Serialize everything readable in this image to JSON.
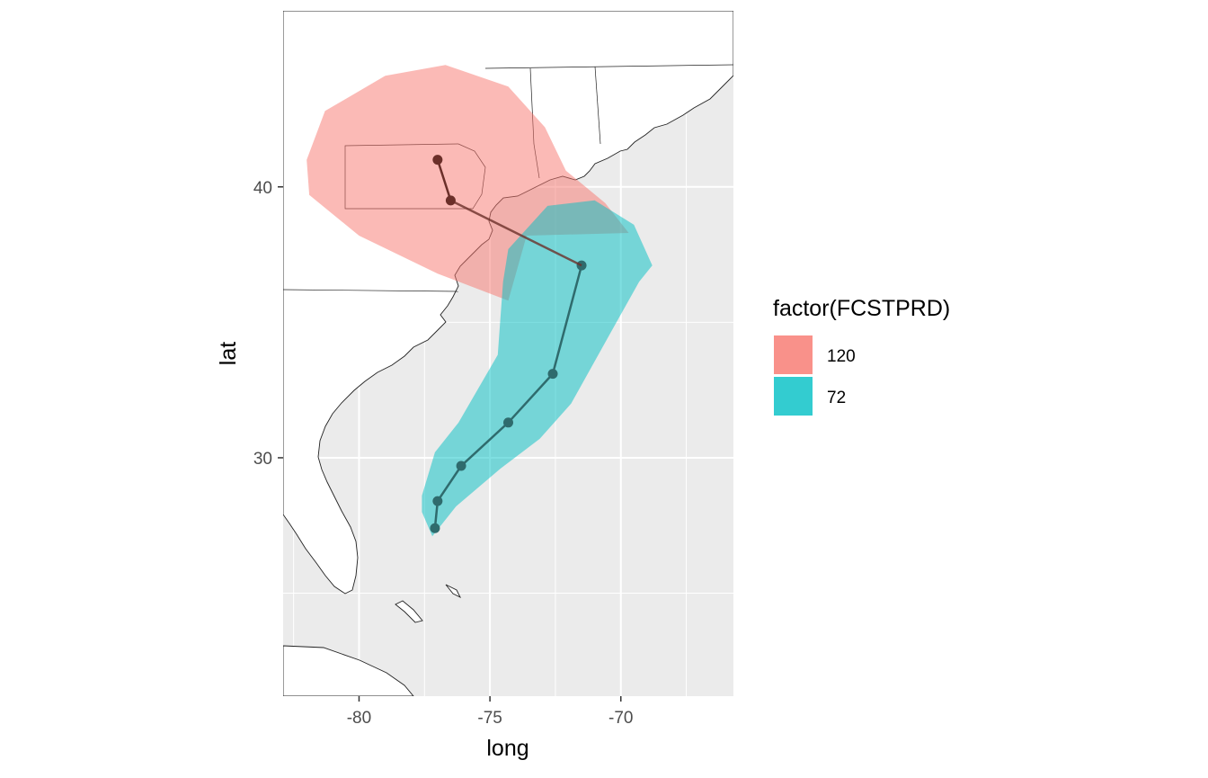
{
  "chart_data": {
    "type": "map",
    "xlabel": "long",
    "ylabel": "lat",
    "xlim": [
      -82.9,
      -65.7
    ],
    "ylim": [
      21.2,
      46.5
    ],
    "x_ticks": [
      {
        "value": -80,
        "label": "-80"
      },
      {
        "value": -75,
        "label": "-75"
      },
      {
        "value": -70,
        "label": "-70"
      }
    ],
    "y_ticks": [
      {
        "value": 40,
        "label": "40"
      },
      {
        "value": 30,
        "label": "30"
      }
    ],
    "grid": true,
    "legend": {
      "title": "factor(FCSTPRD)",
      "position": "right",
      "entries": [
        {
          "label": "120",
          "color": "#f8766d"
        },
        {
          "label": "72",
          "color": "#00bfc4"
        }
      ]
    },
    "series": [
      {
        "key": "120",
        "color": "#f8766d",
        "track": [
          {
            "long": -76.5,
            "lat": 39.5
          },
          {
            "long": -77.0,
            "lat": 41.0
          }
        ],
        "cone": [
          [
            -82.0,
            41.0
          ],
          [
            -81.3,
            42.8
          ],
          [
            -79.0,
            44.1
          ],
          [
            -76.7,
            44.5
          ],
          [
            -74.3,
            43.7
          ],
          [
            -72.9,
            42.2
          ],
          [
            -72.1,
            40.6
          ],
          [
            -70.6,
            39.4
          ],
          [
            -69.7,
            38.3
          ],
          [
            -73.6,
            38.2
          ],
          [
            -74.3,
            35.8
          ],
          [
            -77.0,
            36.8
          ],
          [
            -80.0,
            38.2
          ],
          [
            -81.9,
            39.7
          ]
        ]
      },
      {
        "key": "72",
        "color": "#00bfc4",
        "track": [
          {
            "long": -77.1,
            "lat": 27.4
          },
          {
            "long": -77.0,
            "lat": 28.4
          },
          {
            "long": -76.1,
            "lat": 29.7
          },
          {
            "long": -74.3,
            "lat": 31.3
          },
          {
            "long": -72.6,
            "lat": 33.1
          },
          {
            "long": -71.5,
            "lat": 37.1
          }
        ],
        "cone": [
          [
            -77.2,
            27.1
          ],
          [
            -76.3,
            28.2
          ],
          [
            -74.6,
            29.6
          ],
          [
            -73.1,
            30.7
          ],
          [
            -71.9,
            32.0
          ],
          [
            -70.4,
            34.6
          ],
          [
            -69.3,
            36.5
          ],
          [
            -68.8,
            37.1
          ],
          [
            -69.5,
            38.6
          ],
          [
            -71.0,
            39.5
          ],
          [
            -72.8,
            39.3
          ],
          [
            -74.3,
            37.7
          ],
          [
            -74.5,
            36.5
          ],
          [
            -74.7,
            33.8
          ],
          [
            -76.2,
            31.3
          ],
          [
            -77.1,
            30.2
          ],
          [
            -77.6,
            28.6
          ],
          [
            -77.6,
            28.0
          ]
        ]
      }
    ]
  }
}
